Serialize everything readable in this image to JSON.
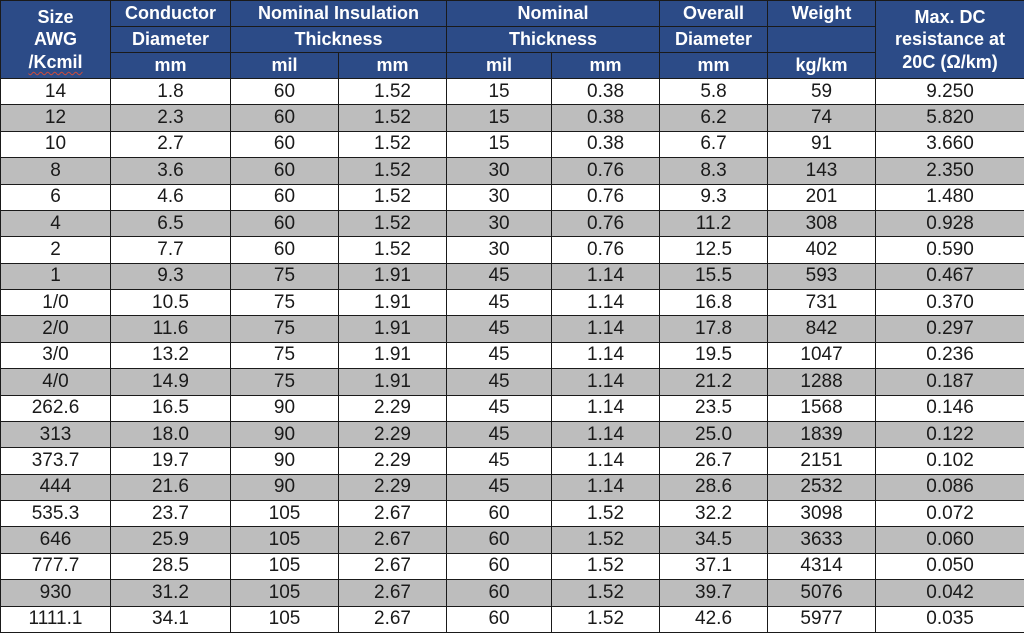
{
  "table": {
    "header": {
      "size_line1": "Size",
      "size_line2": "AWG",
      "size_line3": "/Kcmil",
      "conductor_title": "Conductor",
      "conductor_sub": "Diameter",
      "insulation_title": "Nominal Insulation",
      "insulation_sub": "Thickness",
      "nominal_title": "Nominal",
      "nominal_sub": "Thickness",
      "overall_title": "Overall",
      "overall_sub": "Diameter",
      "weight_title": "Weight",
      "weight_sub": "",
      "resistance_line1": "Max. DC",
      "resistance_line2": "resistance at",
      "resistance_line3": "20C (Ω/km)",
      "units": [
        "mm",
        "mil",
        "mm",
        "mil",
        "mm",
        "mm",
        "kg/km"
      ]
    },
    "rows": [
      [
        "14",
        "1.8",
        "60",
        "1.52",
        "15",
        "0.38",
        "5.8",
        "59",
        "9.250"
      ],
      [
        "12",
        "2.3",
        "60",
        "1.52",
        "15",
        "0.38",
        "6.2",
        "74",
        "5.820"
      ],
      [
        "10",
        "2.7",
        "60",
        "1.52",
        "15",
        "0.38",
        "6.7",
        "91",
        "3.660"
      ],
      [
        "8",
        "3.6",
        "60",
        "1.52",
        "30",
        "0.76",
        "8.3",
        "143",
        "2.350"
      ],
      [
        "6",
        "4.6",
        "60",
        "1.52",
        "30",
        "0.76",
        "9.3",
        "201",
        "1.480"
      ],
      [
        "4",
        "6.5",
        "60",
        "1.52",
        "30",
        "0.76",
        "11.2",
        "308",
        "0.928"
      ],
      [
        "2",
        "7.7",
        "60",
        "1.52",
        "30",
        "0.76",
        "12.5",
        "402",
        "0.590"
      ],
      [
        "1",
        "9.3",
        "75",
        "1.91",
        "45",
        "1.14",
        "15.5",
        "593",
        "0.467"
      ],
      [
        "1/0",
        "10.5",
        "75",
        "1.91",
        "45",
        "1.14",
        "16.8",
        "731",
        "0.370"
      ],
      [
        "2/0",
        "11.6",
        "75",
        "1.91",
        "45",
        "1.14",
        "17.8",
        "842",
        "0.297"
      ],
      [
        "3/0",
        "13.2",
        "75",
        "1.91",
        "45",
        "1.14",
        "19.5",
        "1047",
        "0.236"
      ],
      [
        "4/0",
        "14.9",
        "75",
        "1.91",
        "45",
        "1.14",
        "21.2",
        "1288",
        "0.187"
      ],
      [
        "262.6",
        "16.5",
        "90",
        "2.29",
        "45",
        "1.14",
        "23.5",
        "1568",
        "0.146"
      ],
      [
        "313",
        "18.0",
        "90",
        "2.29",
        "45",
        "1.14",
        "25.0",
        "1839",
        "0.122"
      ],
      [
        "373.7",
        "19.7",
        "90",
        "2.29",
        "45",
        "1.14",
        "26.7",
        "2151",
        "0.102"
      ],
      [
        "444",
        "21.6",
        "90",
        "2.29",
        "45",
        "1.14",
        "28.6",
        "2532",
        "0.086"
      ],
      [
        "535.3",
        "23.7",
        "105",
        "2.67",
        "60",
        "1.52",
        "32.2",
        "3098",
        "0.072"
      ],
      [
        "646",
        "25.9",
        "105",
        "2.67",
        "60",
        "1.52",
        "34.5",
        "3633",
        "0.060"
      ],
      [
        "777.7",
        "28.5",
        "105",
        "2.67",
        "60",
        "1.52",
        "37.1",
        "4314",
        "0.050"
      ],
      [
        "930",
        "31.2",
        "105",
        "2.67",
        "60",
        "1.52",
        "39.7",
        "5076",
        "0.042"
      ],
      [
        "1111.1",
        "34.1",
        "105",
        "2.67",
        "60",
        "1.52",
        "42.6",
        "5977",
        "0.035"
      ]
    ]
  },
  "colors": {
    "header_bg": "#2C4B87",
    "header_text": "#FFFFFF",
    "row_bg": "#FFFFFF",
    "row_alt_bg": "#BDBDBD",
    "border": "#1A1A1A",
    "text": "#1A1A1A",
    "squiggle_underline": "#CC4B3C"
  }
}
